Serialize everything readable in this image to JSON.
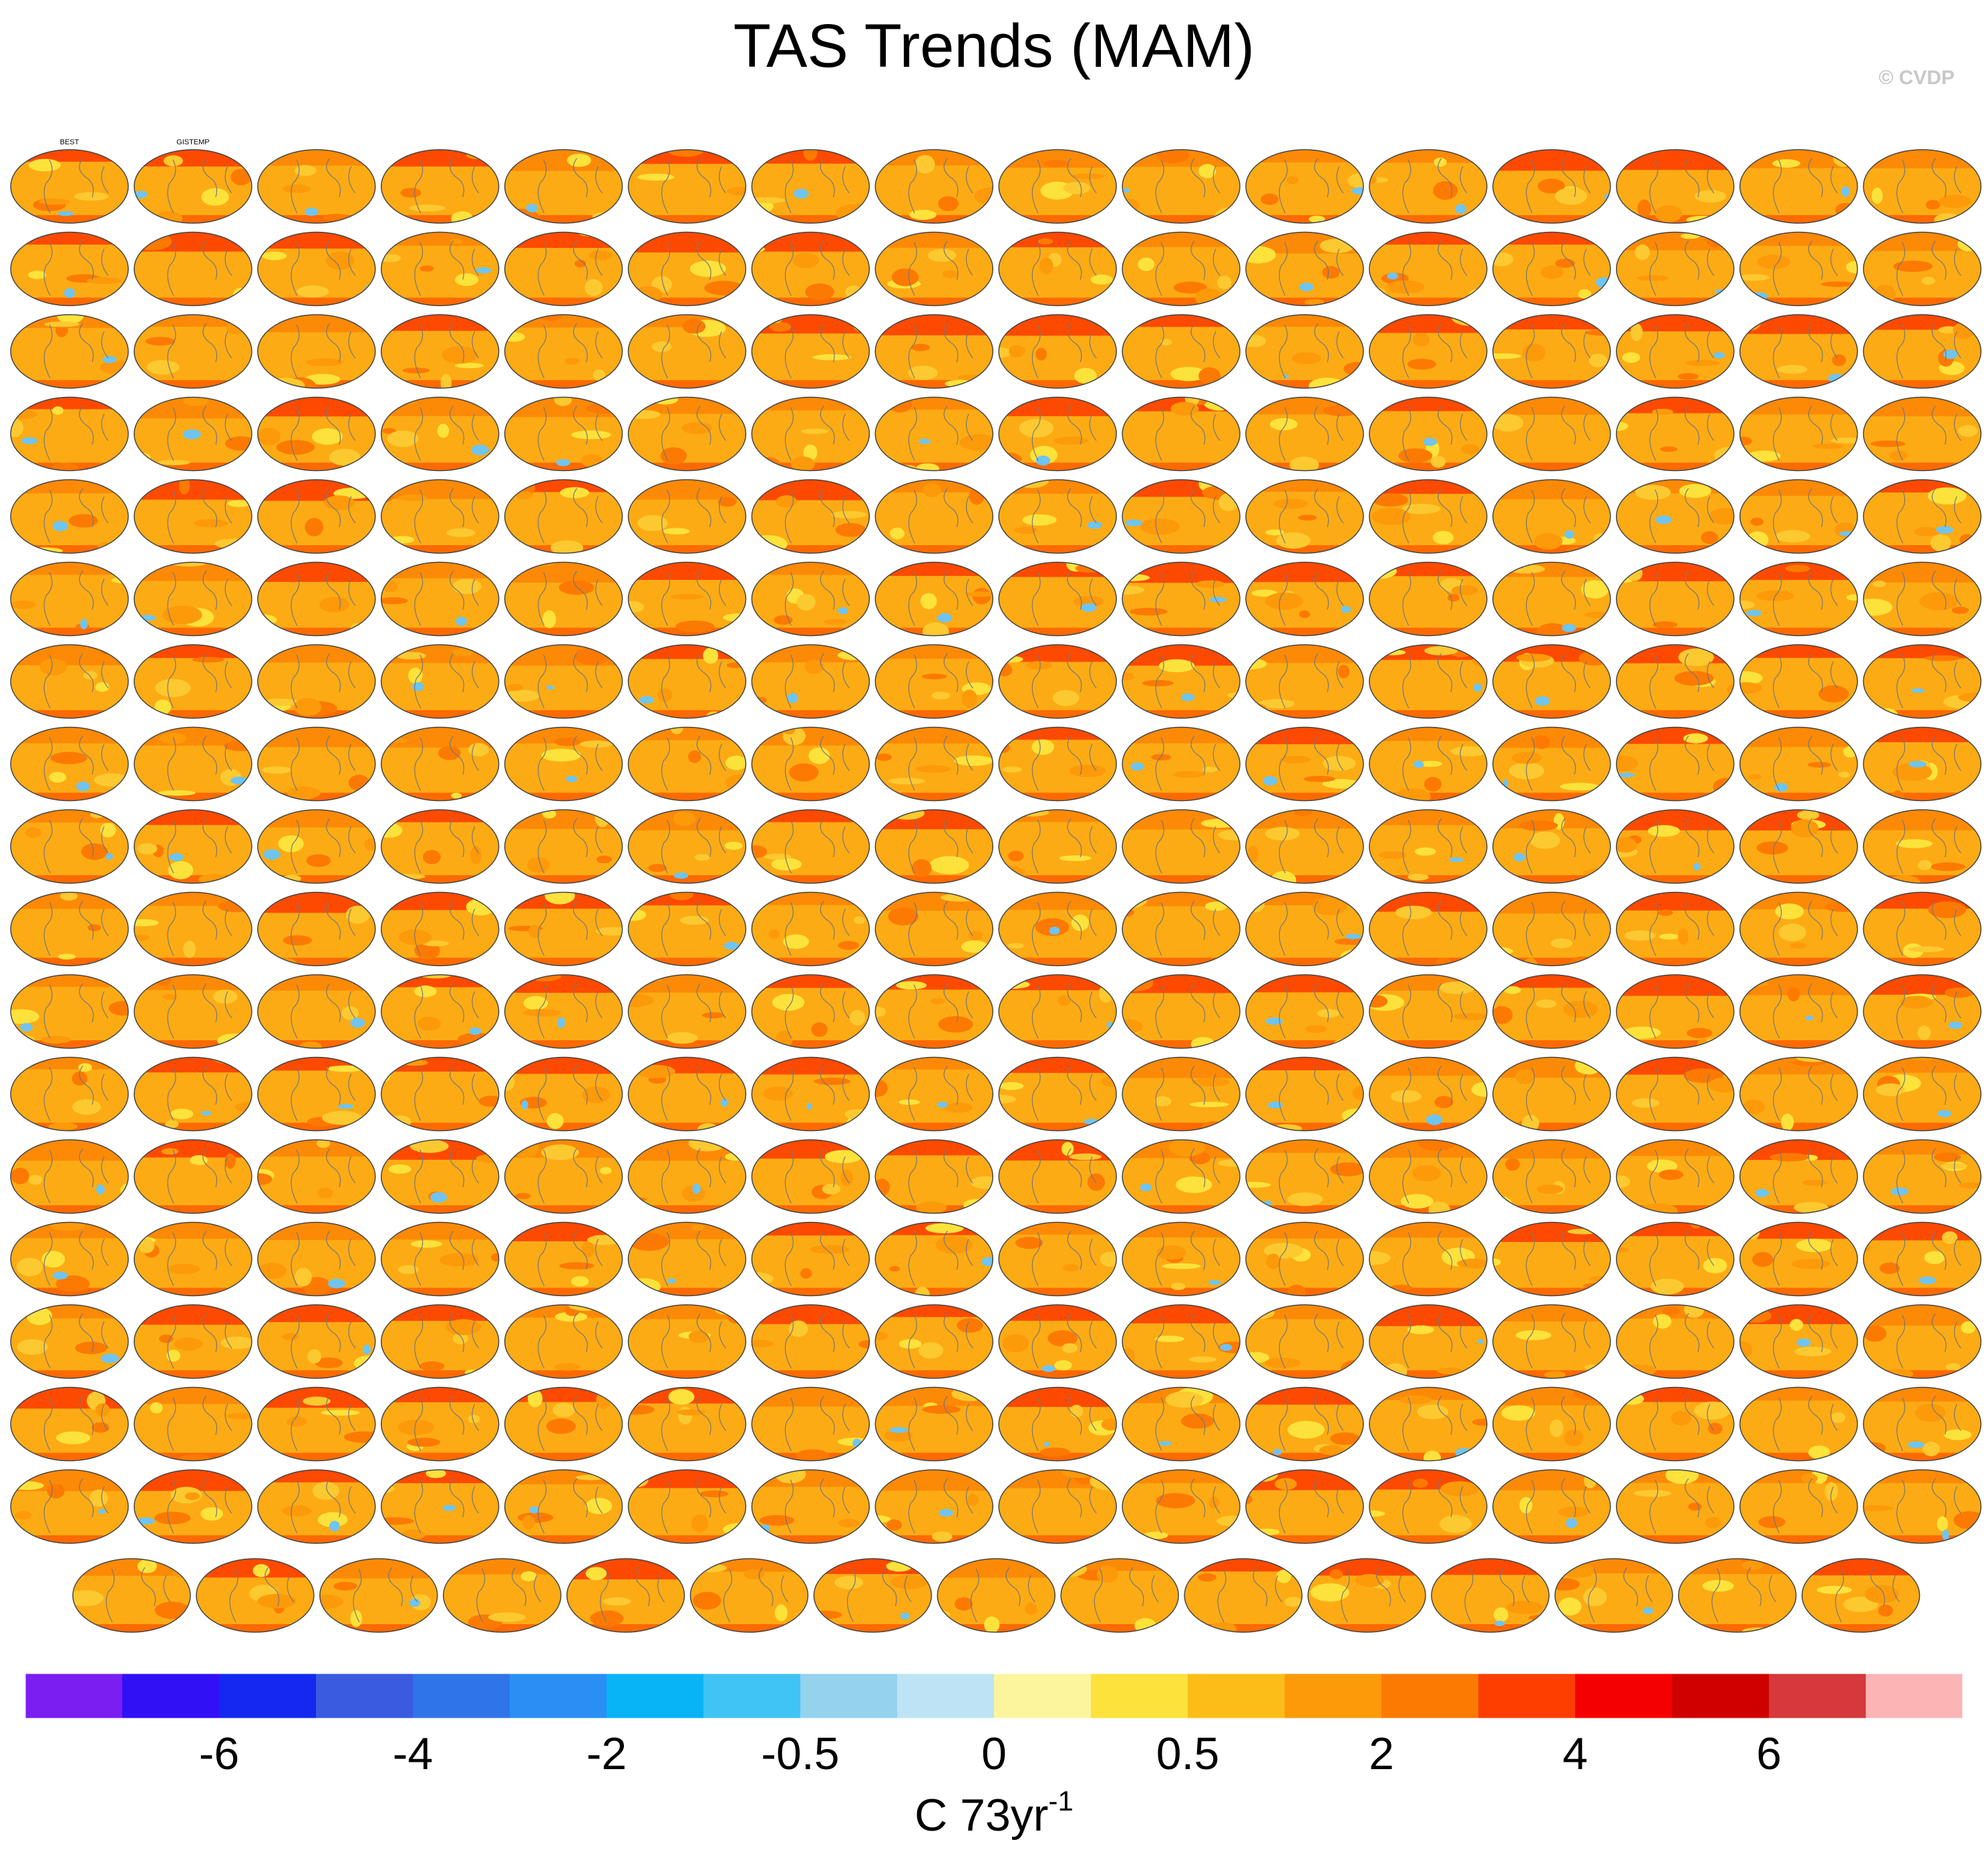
{
  "chart_data": {
    "type": "map-panels",
    "title": "TAS Trends (MAM)",
    "credit": "© CVDP",
    "panel_titles": [
      "BEST",
      "GISTEMP"
    ],
    "colorbar": {
      "colors": [
        "#7a1ef2",
        "#3210f5",
        "#1428f0",
        "#3a5ae0",
        "#2f74e8",
        "#2a8ff5",
        "#08b4f5",
        "#40c4f5",
        "#94d2ee",
        "#bde3f4",
        "#fdf59e",
        "#fde23c",
        "#fdbd18",
        "#fd9a0a",
        "#fd7a02",
        "#fd3e00",
        "#f50000",
        "#cf0000",
        "#d6383b",
        "#fcb4b4"
      ],
      "ticks": [
        -6,
        -4,
        -2,
        -0.5,
        0,
        0.5,
        2,
        4,
        6
      ],
      "unit": "C 73yr",
      "unit_exponent": "-1"
    }
  }
}
